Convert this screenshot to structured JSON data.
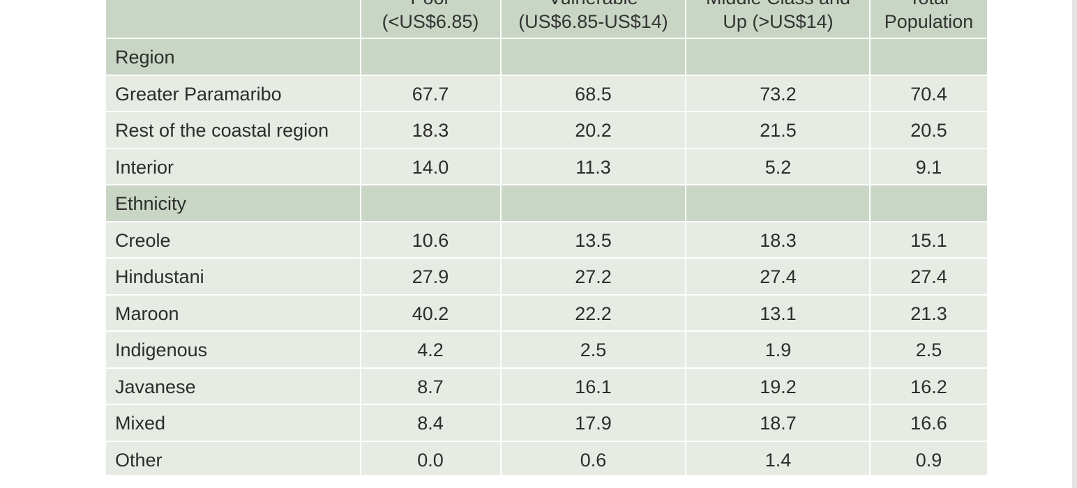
{
  "table": {
    "headers": [
      [
        "",
        ""
      ],
      [
        "Poor",
        "(<US$6.85)"
      ],
      [
        "Vulnerable",
        "(US$6.85-US$14)"
      ],
      [
        "Middle Class and",
        "Up (>US$14)"
      ],
      [
        "Total",
        "Population"
      ]
    ],
    "rows": [
      {
        "type": "section",
        "label": "Region"
      },
      {
        "type": "data",
        "label": "Greater Paramaribo",
        "values": [
          "67.7",
          "68.5",
          "73.2",
          "70.4"
        ]
      },
      {
        "type": "data",
        "label": "Rest of the coastal region",
        "values": [
          "18.3",
          "20.2",
          "21.5",
          "20.5"
        ]
      },
      {
        "type": "data",
        "label": "Interior",
        "values": [
          "14.0",
          "11.3",
          "5.2",
          "9.1"
        ]
      },
      {
        "type": "section",
        "label": "Ethnicity"
      },
      {
        "type": "data",
        "label": "Creole",
        "values": [
          "10.6",
          "13.5",
          "18.3",
          "15.1"
        ]
      },
      {
        "type": "data",
        "label": "Hindustani",
        "values": [
          "27.9",
          "27.2",
          "27.4",
          "27.4"
        ]
      },
      {
        "type": "data",
        "label": "Maroon",
        "values": [
          "40.2",
          "22.2",
          "13.1",
          "21.3"
        ]
      },
      {
        "type": "data",
        "label": "Indigenous",
        "values": [
          "4.2",
          "2.5",
          "1.9",
          "2.5"
        ]
      },
      {
        "type": "data",
        "label": "Javanese",
        "values": [
          "8.7",
          "16.1",
          "19.2",
          "16.2"
        ]
      },
      {
        "type": "data",
        "label": "Mixed",
        "values": [
          "8.4",
          "17.9",
          "18.7",
          "16.6"
        ]
      },
      {
        "type": "data",
        "label": "Other",
        "values": [
          "0.0",
          "0.6",
          "1.4",
          "0.9"
        ]
      }
    ]
  }
}
